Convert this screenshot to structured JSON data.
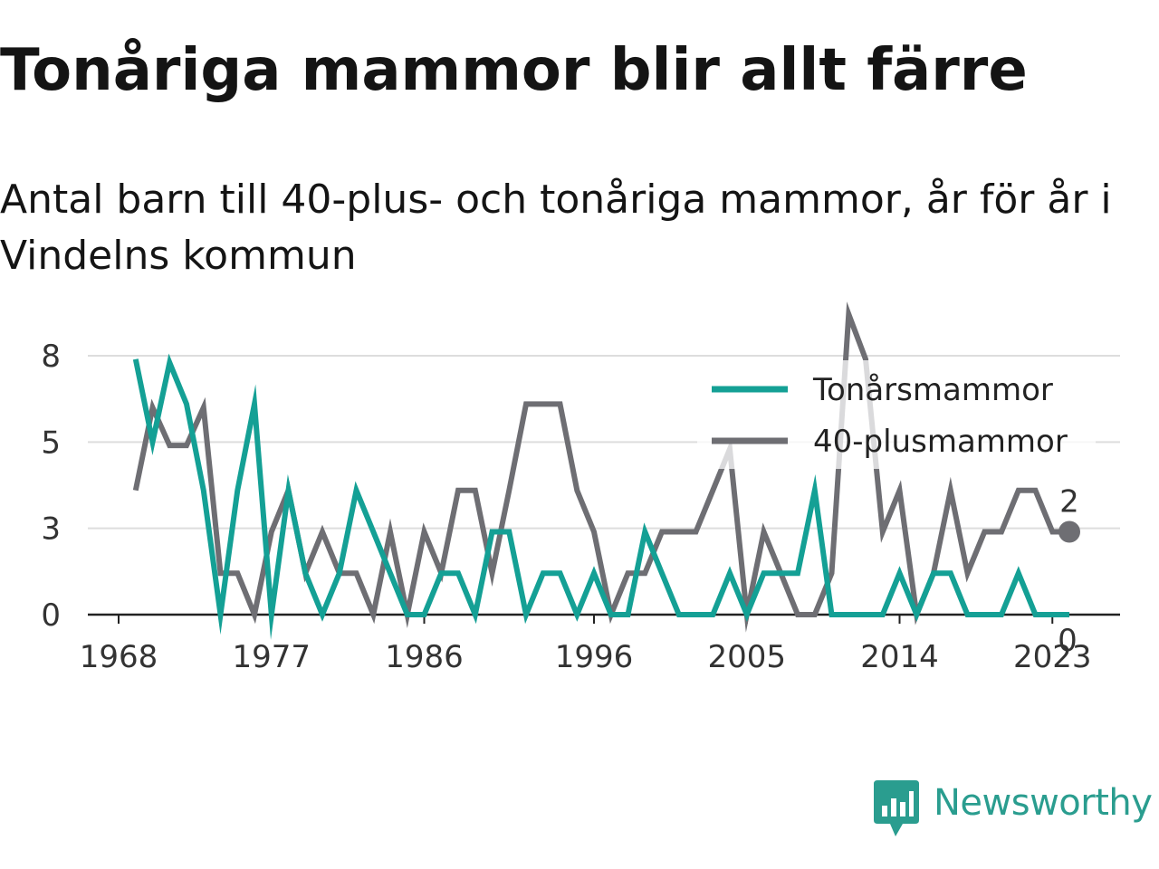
{
  "title": "Tonåriga mammor blir allt färre",
  "subtitle": "Antal barn till 40-plus- och tonåriga mammor, år för år i Vindelns kommun",
  "brand": {
    "name": "Newsworthy",
    "color": "#2a9d8f",
    "icon": "newsworthy-chart-icon"
  },
  "chart_data": {
    "type": "line",
    "x": [
      1969,
      1970,
      1971,
      1972,
      1973,
      1974,
      1975,
      1976,
      1977,
      1978,
      1979,
      1980,
      1981,
      1982,
      1983,
      1984,
      1985,
      1986,
      1987,
      1988,
      1989,
      1990,
      1991,
      1992,
      1993,
      1994,
      1995,
      1996,
      1997,
      1998,
      1999,
      2000,
      2001,
      2002,
      2003,
      2004,
      2005,
      2006,
      2007,
      2008,
      2009,
      2010,
      2011,
      2012,
      2013,
      2014,
      2015,
      2016,
      2017,
      2018,
      2019,
      2020,
      2021,
      2022,
      2023,
      2024
    ],
    "series": [
      {
        "name": "Tonårsmammor",
        "color": "#14a095",
        "values": [
          7.4,
          5,
          7.3,
          6.1,
          3.6,
          0,
          3.6,
          6.1,
          0,
          3.6,
          1.2,
          0,
          1.2,
          3.6,
          2.4,
          1.2,
          0,
          0,
          1.2,
          1.2,
          0,
          2.4,
          2.4,
          0,
          1.2,
          1.2,
          0,
          1.2,
          0,
          0,
          2.4,
          1.2,
          0,
          0,
          0,
          1.2,
          0,
          1.2,
          1.2,
          1.2,
          3.6,
          0,
          0,
          0,
          0,
          1.2,
          0,
          1.2,
          1.2,
          0,
          0,
          0,
          1.2,
          0,
          0,
          0
        ]
      },
      {
        "name": "40-plusmammor",
        "color": "#6e6e73",
        "values": [
          3.6,
          6,
          4.9,
          4.9,
          6,
          1.2,
          1.2,
          0,
          2.4,
          3.6,
          1.2,
          2.4,
          1.2,
          1.2,
          0,
          2.4,
          0,
          2.4,
          1.2,
          3.6,
          3.6,
          1.2,
          3.6,
          6.1,
          6.1,
          6.1,
          3.6,
          2.4,
          0,
          1.2,
          1.2,
          2.4,
          2.4,
          2.4,
          3.6,
          4.8,
          0,
          2.4,
          1.2,
          0,
          0,
          1.2,
          8.7,
          7.4,
          2.4,
          3.6,
          0,
          1.2,
          3.6,
          1.2,
          2.4,
          2.4,
          3.6,
          3.6,
          2.4,
          2.4
        ]
      }
    ],
    "end_labels": [
      "2",
      "0"
    ],
    "xticks": [
      "1968",
      "1977",
      "1986",
      "1996",
      "2005",
      "2014",
      "2023"
    ],
    "xtick_values": [
      1968,
      1977,
      1986,
      1996,
      2005,
      2014,
      2023
    ],
    "yticks": [
      "0",
      "3",
      "5",
      "8"
    ],
    "ytick_values": [
      0,
      2.5,
      5,
      7.5
    ],
    "xlim": [
      1968,
      2025
    ],
    "ylim": [
      0,
      7.5
    ],
    "grid": true,
    "legend_position": "top-right",
    "grid_color": "#dddddd",
    "axis_color": "#222222",
    "label_color": "#333333"
  }
}
